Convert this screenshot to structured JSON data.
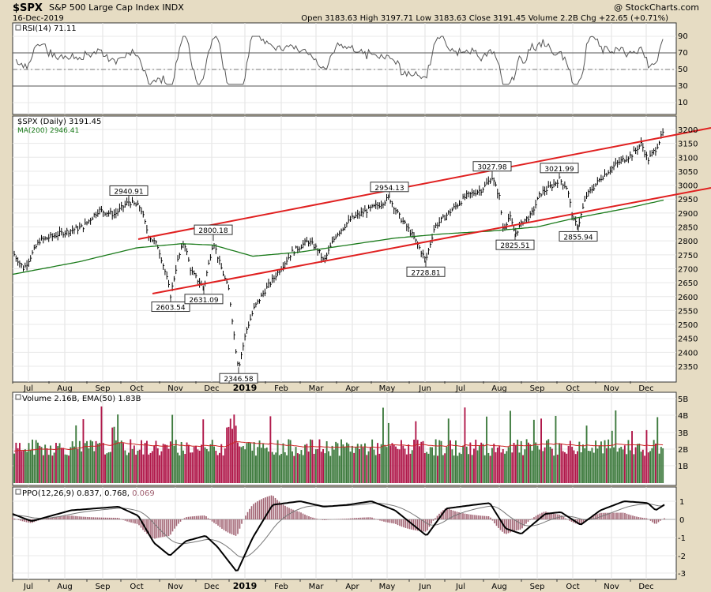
{
  "header": {
    "symbol": "$SPX",
    "description": "S&P 500 Large Cap Index",
    "exchange": "INDX",
    "date": "16-Dec-2019",
    "watermark": "@ StockCharts.com",
    "quote": "Open 3183.63  High 3197.71  Low 3183.63  Close 3191.45  Volume 2.2B  Chg +22.65 (+0.71%)"
  },
  "rsi": {
    "legend": "RSI(14) 71.11",
    "ticks": [
      "90",
      "70",
      "50",
      "30",
      "10"
    ]
  },
  "price": {
    "legend": "$SPX (Daily) 3191.45",
    "ma_legend": "MA(200) 2946.41",
    "ticks": [
      "3200",
      "3150",
      "3100",
      "3050",
      "3000",
      "2950",
      "2900",
      "2850",
      "2800",
      "2750",
      "2700",
      "2650",
      "2600",
      "2550",
      "2500",
      "2450",
      "2400",
      "2350"
    ],
    "annotations": [
      "2940.91",
      "2800.18",
      "2954.13",
      "3027.98",
      "3021.99",
      "2603.54",
      "2631.09",
      "2346.58",
      "2728.81",
      "2825.51",
      "2855.94"
    ]
  },
  "volume": {
    "legend": "Volume 2.16B, EMA(50) 1.83B",
    "ticks": [
      "5B",
      "4B",
      "3B",
      "2B",
      "1B"
    ]
  },
  "ppo": {
    "legend_main": "PPO(12,26,9) 0.837, 0.768,",
    "legend_hist": "0.069",
    "ticks": [
      "1",
      "0",
      "-1",
      "-2",
      "-3"
    ]
  },
  "x_axis": {
    "labels": [
      "Jul",
      "Aug",
      "Sep",
      "Oct",
      "Nov",
      "Dec",
      "2019",
      "Feb",
      "Mar",
      "Apr",
      "May",
      "Jun",
      "Jul",
      "Aug",
      "Sep",
      "Oct",
      "Nov",
      "Dec"
    ]
  },
  "chart_data": {
    "type": "line",
    "x_range": [
      "Jul-2018",
      "Dec-2019"
    ],
    "price_ylim": [
      2300,
      3220
    ],
    "price_points": [
      [
        "Jul-2018",
        2760
      ],
      [
        "Aug-2018",
        2820
      ],
      [
        "Sep-2018",
        2900
      ],
      [
        "Oct-2018",
        2940.91
      ],
      [
        "Oct-2018",
        2800.18
      ],
      [
        "Nov-2018",
        2603.54
      ],
      [
        "Dec-2018",
        2631.09
      ],
      [
        "Dec-2018",
        2346.58
      ],
      [
        "Jan-2019",
        2630
      ],
      [
        "Feb-2019",
        2780
      ],
      [
        "Mar-2019",
        2800
      ],
      [
        "Apr-2019",
        2900
      ],
      [
        "May-2019",
        2954.13
      ],
      [
        "Jun-2019",
        2728.81
      ],
      [
        "Jul-2019",
        3027.98
      ],
      [
        "Aug-2019",
        2825.51
      ],
      [
        "Sep-2019",
        3021.99
      ],
      [
        "Oct-2019",
        2855.94
      ],
      [
        "Nov-2019",
        3100
      ],
      [
        "Dec-2019",
        3191.45
      ]
    ],
    "ma200_points": [
      [
        "Jul-2018",
        2680
      ],
      [
        "Oct-2018",
        2780
      ],
      [
        "Jan-2019",
        2740
      ],
      [
        "Apr-2019",
        2780
      ],
      [
        "Jul-2019",
        2830
      ],
      [
        "Sep-2019",
        2860
      ],
      [
        "Oct-2019",
        2880
      ],
      [
        "Dec-2019",
        2946.41
      ]
    ],
    "rsi_ylim": [
      0,
      100
    ],
    "rsi_levels": [
      70,
      50,
      30
    ],
    "volume_ylim": [
      0,
      5
    ],
    "ppo_ylim": [
      -3,
      1.5
    ],
    "colors": {
      "price": "#000000",
      "ma200": "#1a7a1a",
      "trendline": "#e02020",
      "rsi": "#555555",
      "volume_up": "#3d7a3d",
      "volume_down": "#b0184a",
      "ema50": "#cc2222",
      "ppo": "#000000",
      "signal": "#666666",
      "hist": "#a06070"
    },
    "grid": true
  }
}
